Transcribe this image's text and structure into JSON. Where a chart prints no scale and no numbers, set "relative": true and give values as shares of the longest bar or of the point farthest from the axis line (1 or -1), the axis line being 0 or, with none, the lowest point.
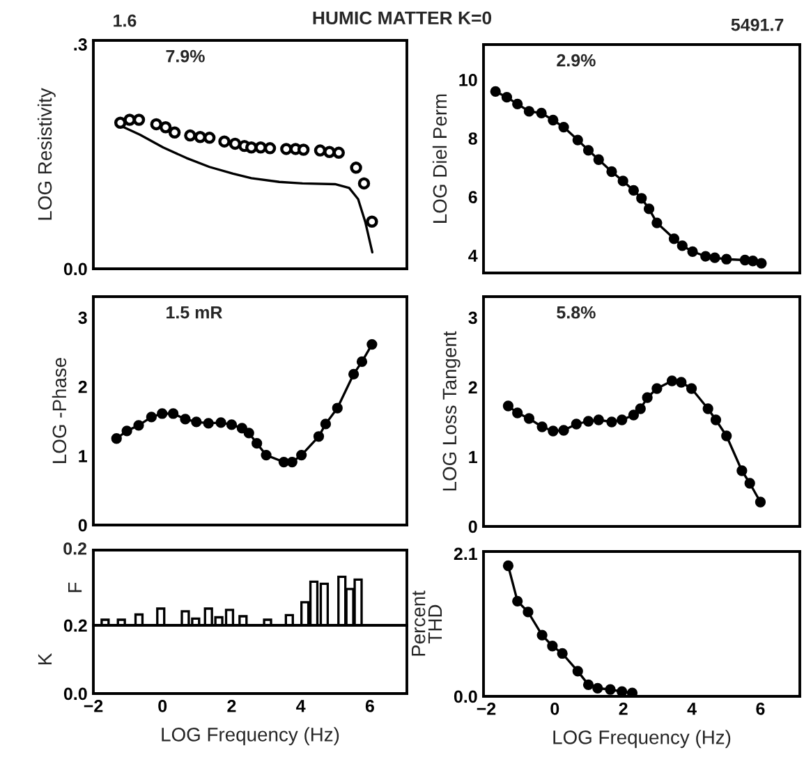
{
  "chart_data": [
    {
      "type": "scatter",
      "title": "HUMIC MATTER K=0",
      "ylabel": "LOG Resistivity",
      "annotations": [
        "7.9%",
        "1.6"
      ],
      "marker": "circle",
      "tick_labels": "y",
      "xlim": [
        -2,
        7.07
      ],
      "ylim": [
        0,
        0.305
      ],
      "xticks": [
        -2,
        0,
        2,
        4,
        6
      ],
      "yticks": [
        {
          "value": 0,
          "label": "0.0"
        },
        {
          "value": 0.3,
          "label": ".3"
        }
      ],
      "series": [
        {
          "type": "scatter",
          "color": "#000000",
          "x": [
            -1.22,
            -0.95,
            -0.68,
            -0.18,
            0.09,
            0.35,
            0.8,
            1.09,
            1.36,
            1.79,
            2.1,
            2.37,
            2.57,
            2.84,
            3.11,
            3.58,
            3.85,
            4.08,
            4.56,
            4.83,
            5.1,
            5.6,
            5.83,
            6.06
          ],
          "values": [
            0.195,
            0.199,
            0.199,
            0.193,
            0.189,
            0.182,
            0.178,
            0.176,
            0.175,
            0.17,
            0.167,
            0.164,
            0.162,
            0.162,
            0.161,
            0.16,
            0.16,
            0.159,
            0.158,
            0.156,
            0.155,
            0.135,
            0.114,
            0.063
          ]
        },
        {
          "type": "line",
          "marker": "none",
          "color": "#000000",
          "x": [
            -1.26,
            -0.65,
            0.02,
            0.69,
            1.36,
            2.04,
            2.57,
            3.38,
            4.05,
            4.99,
            5.4,
            5.66,
            5.87,
            6.07
          ],
          "values": [
            0.192,
            0.179,
            0.162,
            0.148,
            0.136,
            0.127,
            0.121,
            0.116,
            0.114,
            0.113,
            0.108,
            0.093,
            0.062,
            0.022
          ]
        }
      ]
    },
    {
      "type": "line",
      "ylabel": "LOG Diel Perm",
      "annotations": [
        "2.9%",
        "5491.7"
      ],
      "marker": "circle",
      "tick_labels": "y",
      "xlim": [
        -2.08,
        7.15
      ],
      "ylim": [
        3.4,
        11.2
      ],
      "xticks": [
        -2,
        0,
        2,
        4,
        6
      ],
      "yticks": [
        4,
        6,
        8,
        10
      ],
      "series": [
        {
          "color": "#000000",
          "x": [
            -1.73,
            -1.4,
            -1.09,
            -0.75,
            -0.39,
            -0.05,
            0.26,
            0.67,
            0.98,
            1.28,
            1.66,
            1.99,
            2.3,
            2.53,
            2.75,
            2.98,
            3.48,
            3.72,
            4.02,
            4.4,
            4.67,
            5.01,
            5.55,
            5.78,
            6.03
          ],
          "values": [
            9.6,
            9.4,
            9.17,
            8.92,
            8.86,
            8.62,
            8.38,
            7.94,
            7.59,
            7.27,
            6.86,
            6.54,
            6.22,
            5.95,
            5.59,
            5.11,
            4.57,
            4.33,
            4.13,
            3.97,
            3.92,
            3.87,
            3.84,
            3.81,
            3.73
          ]
        }
      ]
    },
    {
      "type": "line",
      "ylabel": "LOG -Phase",
      "annotations": [
        "1.5 mR"
      ],
      "marker": "circle",
      "tick_labels": "y",
      "xlim": [
        -2,
        7.07
      ],
      "ylim": [
        0,
        3.3
      ],
      "xticks": [
        -2,
        0,
        2,
        4,
        6
      ],
      "yticks": [
        0,
        1,
        2,
        3
      ],
      "series": [
        {
          "color": "#000000",
          "x": [
            -1.33,
            -1.03,
            -0.69,
            -0.32,
            -0.01,
            0.31,
            0.66,
            0.98,
            1.33,
            1.69,
            2.0,
            2.3,
            2.5,
            2.73,
            3.0,
            3.51,
            3.75,
            4.02,
            4.52,
            4.72,
            5.06,
            5.53,
            5.77,
            6.06
          ],
          "values": [
            1.25,
            1.36,
            1.44,
            1.56,
            1.61,
            1.61,
            1.53,
            1.49,
            1.47,
            1.48,
            1.45,
            1.4,
            1.33,
            1.18,
            1.01,
            0.91,
            0.91,
            1.01,
            1.28,
            1.46,
            1.69,
            2.18,
            2.36,
            2.61
          ]
        }
      ]
    },
    {
      "type": "line",
      "ylabel": "LOG Loss Tangent",
      "annotations": [
        "5.8%"
      ],
      "marker": "circle",
      "tick_labels": "y",
      "xlim": [
        -2.08,
        7.15
      ],
      "ylim": [
        0,
        3.3
      ],
      "xticks": [
        -2,
        0,
        2,
        4,
        6
      ],
      "yticks": [
        0,
        1,
        2,
        3
      ],
      "series": [
        {
          "color": "#000000",
          "x": [
            -1.36,
            -1.09,
            -0.75,
            -0.37,
            -0.05,
            0.26,
            0.63,
            0.98,
            1.28,
            1.66,
            1.96,
            2.3,
            2.5,
            2.7,
            2.98,
            3.42,
            3.69,
            3.99,
            4.47,
            4.7,
            5.01,
            5.46,
            5.69,
            6.0
          ],
          "values": [
            1.73,
            1.63,
            1.55,
            1.43,
            1.37,
            1.38,
            1.47,
            1.51,
            1.53,
            1.5,
            1.53,
            1.6,
            1.69,
            1.85,
            1.98,
            2.09,
            2.07,
            1.98,
            1.69,
            1.53,
            1.3,
            0.8,
            0.62,
            0.35
          ]
        }
      ]
    },
    {
      "type": "bar",
      "ylabel": "F",
      "tick_labels": "y",
      "relative": true,
      "annotations": [
        "0.2"
      ],
      "xlim": [
        -2,
        7.07
      ],
      "xticks": [
        -2,
        0,
        2,
        4,
        6
      ],
      "x": [
        -1.66,
        -1.19,
        -0.68,
        -0.05,
        0.66,
        0.96,
        1.33,
        1.63,
        1.94,
        2.33,
        3.04,
        3.67,
        4.12,
        4.38,
        4.68,
        5.19,
        5.42,
        5.66
      ],
      "values": [
        0.115,
        0.115,
        0.223,
        0.345,
        0.288,
        0.137,
        0.345,
        0.165,
        0.317,
        0.187,
        0.115,
        0.209,
        0.475,
        0.899,
        0.856,
        1,
        0.748,
        0.942
      ],
      "color": "#ffffff"
    },
    {
      "type": "line",
      "ylabel": "Percent\nTHD",
      "xlabel": "LOG Frequency (Hz)",
      "marker": "circle",
      "xlim": [
        -2.08,
        7.15
      ],
      "ylim": [
        0,
        2.13
      ],
      "xticks": [
        {
          "value": -2,
          "label": "−2"
        },
        0,
        2,
        4,
        6
      ],
      "yticks": [
        {
          "value": 0,
          "label": "0.0"
        },
        {
          "value": 2.1,
          "label": "2.1"
        }
      ],
      "series": [
        {
          "color": "#000000",
          "x": [
            -1.36,
            -1.09,
            -0.78,
            -0.37,
            -0.07,
            0.22,
            0.67,
            0.98,
            1.25,
            1.62,
            1.96,
            2.26
          ],
          "values": [
            1.92,
            1.4,
            1.24,
            0.9,
            0.74,
            0.63,
            0.37,
            0.17,
            0.12,
            0.1,
            0.07,
            0.05
          ]
        }
      ]
    },
    {
      "type": "line",
      "ylabel": "K",
      "xlabel": "LOG Frequency (Hz)",
      "xlim": [
        -2,
        7.07
      ],
      "ylim": [
        0,
        0.2
      ],
      "xticks": [
        {
          "value": -2,
          "label": "−2"
        },
        0,
        2,
        4,
        6
      ],
      "yticks": [
        {
          "value": 0,
          "label": "0.0"
        },
        {
          "value": 0.2,
          "label": "0.2"
        }
      ]
    }
  ]
}
